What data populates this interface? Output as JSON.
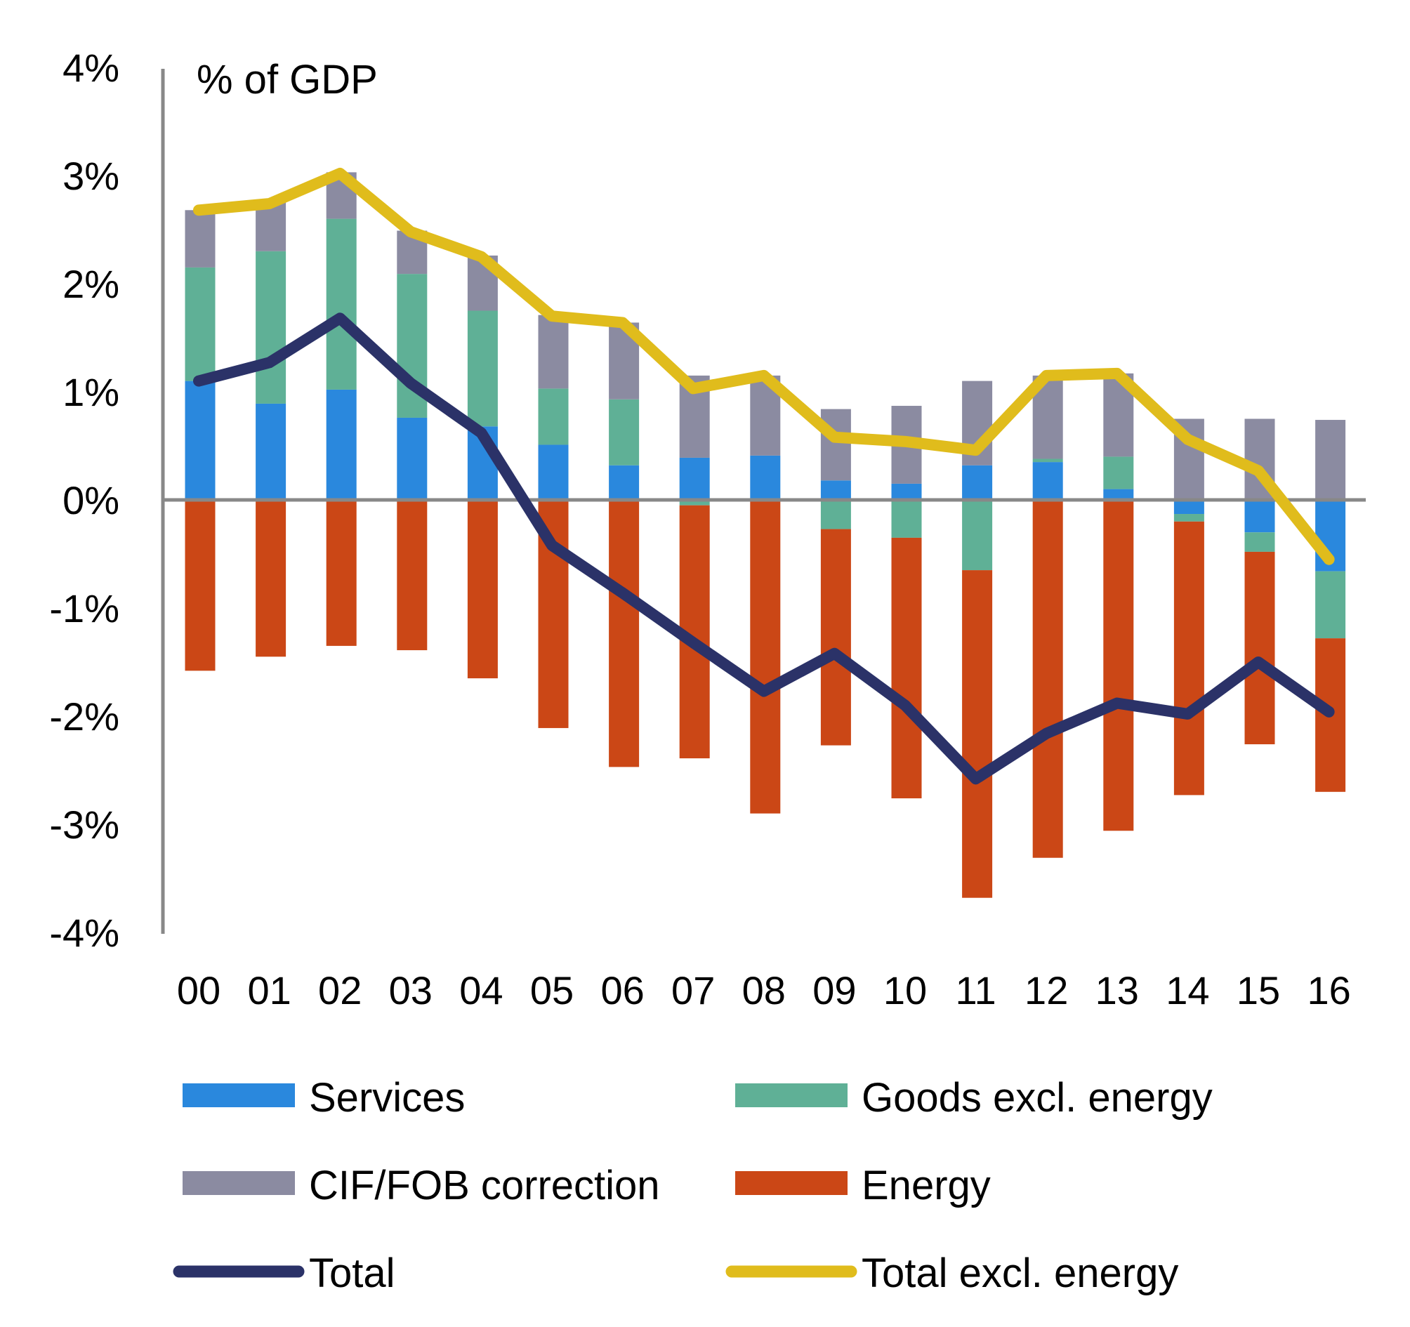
{
  "chart_data": {
    "type": "bar",
    "stacked": true,
    "unit_label": "% of GDP",
    "title": "",
    "xlabel": "",
    "ylabel": "% of GDP",
    "ylim": [
      -4,
      4
    ],
    "yticks": [
      4,
      3,
      2,
      1,
      0,
      -1,
      -2,
      -3,
      -4
    ],
    "ytick_labels": [
      "4%",
      "3%",
      "2%",
      "1%",
      "0%",
      "-1%",
      "-2%",
      "-3%",
      "-4%"
    ],
    "grid": false,
    "legend_position": "bottom",
    "categories": [
      "00",
      "01",
      "02",
      "03",
      "04",
      "05",
      "06",
      "07",
      "08",
      "09",
      "10",
      "11",
      "12",
      "13",
      "14",
      "15",
      "16"
    ],
    "series": [
      {
        "name": "Services",
        "kind": "bar",
        "color": "#2A88DD",
        "values": [
          1.1,
          0.89,
          1.02,
          0.76,
          0.68,
          0.51,
          0.32,
          0.39,
          0.41,
          0.18,
          0.15,
          0.32,
          0.35,
          0.1,
          -0.13,
          -0.3,
          -0.66
        ]
      },
      {
        "name": "Goods excl. energy",
        "kind": "bar",
        "color": "#5FB096",
        "values": [
          1.05,
          1.41,
          1.58,
          1.33,
          1.07,
          0.52,
          0.61,
          -0.05,
          0.0,
          -0.27,
          -0.35,
          -0.65,
          0.03,
          0.3,
          -0.07,
          -0.18,
          -0.62
        ]
      },
      {
        "name": "CIF/FOB correction",
        "kind": "bar",
        "color": "#8B8BA1",
        "values": [
          0.53,
          0.45,
          0.43,
          0.4,
          0.51,
          0.68,
          0.71,
          0.76,
          0.74,
          0.66,
          0.72,
          0.78,
          0.77,
          0.77,
          0.75,
          0.75,
          0.74
        ]
      },
      {
        "name": "Energy",
        "kind": "bar",
        "color": "#CB4716",
        "values": [
          -1.58,
          -1.45,
          -1.35,
          -1.39,
          -1.65,
          -2.11,
          -2.47,
          -2.34,
          -2.9,
          -2.0,
          -2.41,
          -3.03,
          -3.31,
          -3.06,
          -2.53,
          -1.78,
          -1.42
        ]
      },
      {
        "name": "Total",
        "kind": "line",
        "color": "#2B3268",
        "values": [
          1.1,
          1.27,
          1.68,
          1.08,
          0.62,
          -0.42,
          -0.86,
          -1.32,
          -1.77,
          -1.42,
          -1.9,
          -2.58,
          -2.16,
          -1.88,
          -1.98,
          -1.5,
          -1.96
        ]
      },
      {
        "name": "Total excl. energy",
        "kind": "line",
        "color": "#E0BC1C",
        "values": [
          2.68,
          2.74,
          3.02,
          2.48,
          2.25,
          1.7,
          1.64,
          1.03,
          1.15,
          0.58,
          0.54,
          0.46,
          1.15,
          1.17,
          0.56,
          0.27,
          -0.55
        ]
      }
    ]
  }
}
